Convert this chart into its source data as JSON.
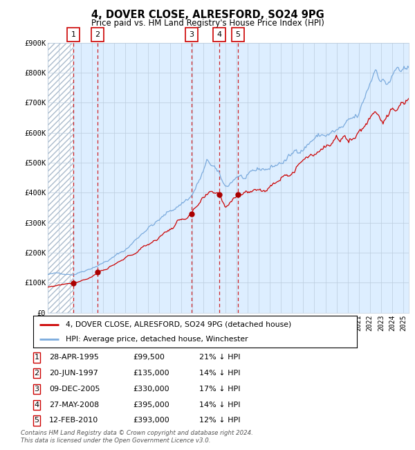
{
  "title": "4, DOVER CLOSE, ALRESFORD, SO24 9PG",
  "subtitle": "Price paid vs. HM Land Registry's House Price Index (HPI)",
  "sale_dates_num": [
    1995.32,
    1997.47,
    2005.93,
    2008.41,
    2010.12
  ],
  "sale_prices": [
    99500,
    135000,
    330000,
    395000,
    393000
  ],
  "sale_labels": [
    "1",
    "2",
    "3",
    "4",
    "5"
  ],
  "sale_date_strs": [
    "28-APR-1995",
    "20-JUN-1997",
    "09-DEC-2005",
    "27-MAY-2008",
    "12-FEB-2010"
  ],
  "sale_price_strs": [
    "£99,500",
    "£135,000",
    "£330,000",
    "£395,000",
    "£393,000"
  ],
  "sale_hpi_strs": [
    "21% ↓ HPI",
    "14% ↓ HPI",
    "17% ↓ HPI",
    "14% ↓ HPI",
    "12% ↓ HPI"
  ],
  "legend_line1": "4, DOVER CLOSE, ALRESFORD, SO24 9PG (detached house)",
  "legend_line2": "HPI: Average price, detached house, Winchester",
  "footer": "Contains HM Land Registry data © Crown copyright and database right 2024.\nThis data is licensed under the Open Government Licence v3.0.",
  "hpi_line_color": "#7aaadd",
  "price_line_color": "#cc0000",
  "sale_marker_color": "#aa0000",
  "vline_color": "#cc0000",
  "ylim": [
    0,
    900000
  ],
  "xlim_start": 1993.0,
  "xlim_end": 2025.5,
  "chart_area_color": "#ddeeff",
  "hatch_color": "#aabbcc",
  "grid_color": "#bbccdd"
}
